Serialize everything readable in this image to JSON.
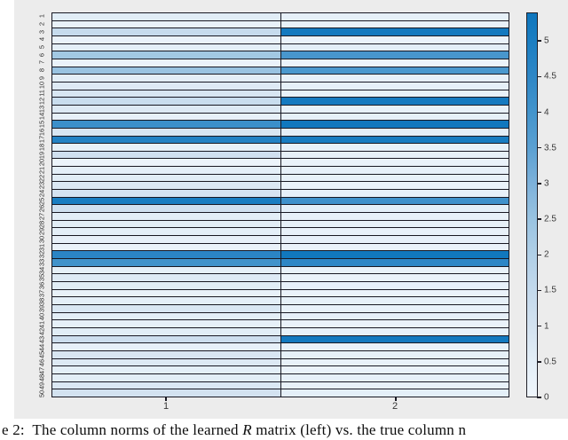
{
  "figure": {
    "background": "#ececec",
    "border_color": "#181822",
    "x_tick_labels": [
      "1",
      "2"
    ],
    "colorbar": {
      "min": 0,
      "max": 5.4,
      "ticks": [
        "0",
        "0.5",
        "1",
        "1.5",
        "2",
        "2.5",
        "3",
        "3.5",
        "4",
        "4.5",
        "5"
      ]
    },
    "colormap_stops": [
      [
        0.0,
        "#f0f6fc"
      ],
      [
        0.5,
        "#e3eef7"
      ],
      [
        1.0,
        "#d3e2f0"
      ],
      [
        1.5,
        "#c3d9ec"
      ],
      [
        2.0,
        "#b0cfe7"
      ],
      [
        2.5,
        "#99c3e1"
      ],
      [
        3.0,
        "#7db1da"
      ],
      [
        3.5,
        "#5ba0d2"
      ],
      [
        4.0,
        "#4394cc"
      ],
      [
        4.5,
        "#2f87c6"
      ],
      [
        5.0,
        "#1b7ec2"
      ],
      [
        5.4,
        "#0e76bd"
      ]
    ]
  },
  "chart_data": {
    "type": "heatmap",
    "title": "",
    "columns": [
      "1",
      "2"
    ],
    "rows": [
      "1",
      "2",
      "3",
      "4",
      "5",
      "6",
      "7",
      "8",
      "9",
      "10",
      "11",
      "12",
      "13",
      "14",
      "15",
      "16",
      "17",
      "18",
      "19",
      "20",
      "21",
      "22",
      "23",
      "24",
      "25",
      "26",
      "27",
      "28",
      "29",
      "30",
      "31",
      "32",
      "33",
      "34",
      "35",
      "36",
      "37",
      "38",
      "39",
      "40",
      "41",
      "42",
      "43",
      "44",
      "45",
      "46",
      "47",
      "48",
      "49",
      "50"
    ],
    "values": [
      [
        0.55,
        0.4
      ],
      [
        0.3,
        0.3
      ],
      [
        1.4,
        5.25
      ],
      [
        0.25,
        0.25
      ],
      [
        0.45,
        0.5
      ],
      [
        2.3,
        3.9
      ],
      [
        0.25,
        0.2
      ],
      [
        2.5,
        3.85
      ],
      [
        0.5,
        0.35
      ],
      [
        0.65,
        0.4
      ],
      [
        0.85,
        0.3
      ],
      [
        1.3,
        5.2
      ],
      [
        0.7,
        0.3
      ],
      [
        0.35,
        0.4
      ],
      [
        4.2,
        5.3
      ],
      [
        0.85,
        0.5
      ],
      [
        4.8,
        5.1
      ],
      [
        0.4,
        0.3
      ],
      [
        1.1,
        0.4
      ],
      [
        0.15,
        0.25
      ],
      [
        0.45,
        0.35
      ],
      [
        0.55,
        0.3
      ],
      [
        0.75,
        0.25
      ],
      [
        0.95,
        0.35
      ],
      [
        5.05,
        4.1
      ],
      [
        1.1,
        0.45
      ],
      [
        0.5,
        0.3
      ],
      [
        0.55,
        0.4
      ],
      [
        0.45,
        0.3
      ],
      [
        0.35,
        0.35
      ],
      [
        0.25,
        0.25
      ],
      [
        4.6,
        5.3
      ],
      [
        4.05,
        4.55
      ],
      [
        0.4,
        0.3
      ],
      [
        0.65,
        0.25
      ],
      [
        0.55,
        0.35
      ],
      [
        0.3,
        0.25
      ],
      [
        0.45,
        0.4
      ],
      [
        0.8,
        0.3
      ],
      [
        0.5,
        0.35
      ],
      [
        0.4,
        0.25
      ],
      [
        0.55,
        0.3
      ],
      [
        1.2,
        5.25
      ],
      [
        0.35,
        0.3
      ],
      [
        0.85,
        0.4
      ],
      [
        0.7,
        0.3
      ],
      [
        0.45,
        0.25
      ],
      [
        0.5,
        0.35
      ],
      [
        0.75,
        0.3
      ],
      [
        1.0,
        0.45
      ]
    ],
    "colorbar_range": [
      0,
      5.4
    ],
    "legend_position": "right-colorbar"
  },
  "caption": {
    "prefix": "e 2:  The column norms of the learned ",
    "math": "R",
    "suffix": " matrix (left) vs. the true column n"
  }
}
